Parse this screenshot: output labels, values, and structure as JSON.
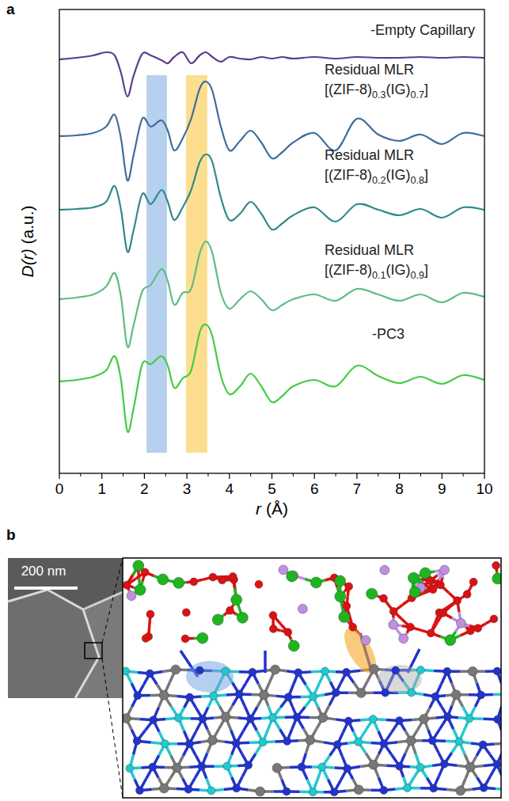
{
  "chart_data": {
    "type": "line",
    "x_label": "r (Å)",
    "y_label": "D(r) (a.u.)",
    "x": [
      0,
      0.4,
      0.8,
      1.1,
      1.3,
      1.45,
      1.6,
      1.75,
      1.95,
      2.15,
      2.4,
      2.55,
      2.7,
      2.9,
      3.1,
      3.3,
      3.45,
      3.6,
      3.8,
      4.0,
      4.25,
      4.5,
      4.75,
      5.0,
      5.25,
      5.5,
      6.0,
      6.5,
      7.0,
      7.5,
      8.0,
      8.5,
      9.0,
      9.5,
      10.0
    ],
    "series": [
      {
        "name": "-Empty Capillary",
        "color": "#5b3d8f",
        "values": [
          523,
          525,
          528,
          532,
          528,
          506,
          476,
          503,
          530,
          528,
          522,
          518,
          526,
          532,
          518,
          528,
          532,
          526,
          520,
          526,
          524,
          523,
          526,
          524,
          526,
          524,
          526,
          524,
          526,
          525,
          525,
          526,
          525,
          526,
          525
        ]
      },
      {
        "name": "Residual MLR [(ZIF-8)0.3(IG)0.7]",
        "color": "#3f6d9b",
        "values": [
          426,
          427,
          430,
          438,
          453,
          423,
          370,
          403,
          448,
          438,
          446,
          433,
          408,
          423,
          448,
          486,
          495,
          483,
          438,
          408,
          420,
          433,
          418,
          398,
          406,
          418,
          430,
          408,
          448,
          428,
          420,
          428,
          416,
          430,
          426
        ]
      },
      {
        "name": "Residual MLR [(ZIF-8)0.2(IG)0.8]",
        "color": "#2f8a8a",
        "values": [
          333,
          334,
          336,
          343,
          363,
          333,
          280,
          308,
          353,
          340,
          358,
          343,
          320,
          336,
          358,
          393,
          403,
          393,
          348,
          320,
          328,
          343,
          328,
          308,
          316,
          326,
          336,
          318,
          340,
          333,
          326,
          334,
          323,
          336,
          333
        ]
      },
      {
        "name": "Residual MLR [(ZIF-8)0.1(IG)0.9]",
        "color": "#5dbd86",
        "values": [
          220,
          222,
          226,
          236,
          253,
          223,
          160,
          188,
          230,
          238,
          258,
          243,
          213,
          228,
          233,
          278,
          293,
          278,
          228,
          208,
          220,
          230,
          220,
          206,
          213,
          220,
          226,
          218,
          233,
          226,
          218,
          226,
          216,
          228,
          223
        ]
      },
      {
        "name": "-PC3",
        "color": "#44cc44",
        "values": [
          116,
          118,
          122,
          130,
          148,
          118,
          53,
          83,
          138,
          138,
          148,
          136,
          108,
          120,
          130,
          178,
          188,
          173,
          123,
          100,
          110,
          126,
          110,
          90,
          98,
          110,
          118,
          110,
          136,
          123,
          114,
          122,
          113,
          124,
          118
        ]
      }
    ],
    "bands": [
      {
        "xmin": 2.05,
        "xmax": 2.53,
        "ymin": 26,
        "ymax": 503,
        "color": "#a9c9ea"
      },
      {
        "xmin": 2.98,
        "xmax": 3.48,
        "ymin": 26,
        "ymax": 503,
        "color": "#fbd87a"
      }
    ],
    "xlim": [
      0,
      10
    ],
    "xticks": [
      0,
      1,
      2,
      3,
      4,
      5,
      6,
      7,
      8,
      9,
      10
    ],
    "ylim": [
      0,
      586
    ],
    "yticks": [],
    "tick_labels": "x",
    "grid": false
  },
  "panel_labels": [
    "a",
    "b"
  ],
  "figure_b": {
    "scale_bar_label": "200 nm"
  }
}
